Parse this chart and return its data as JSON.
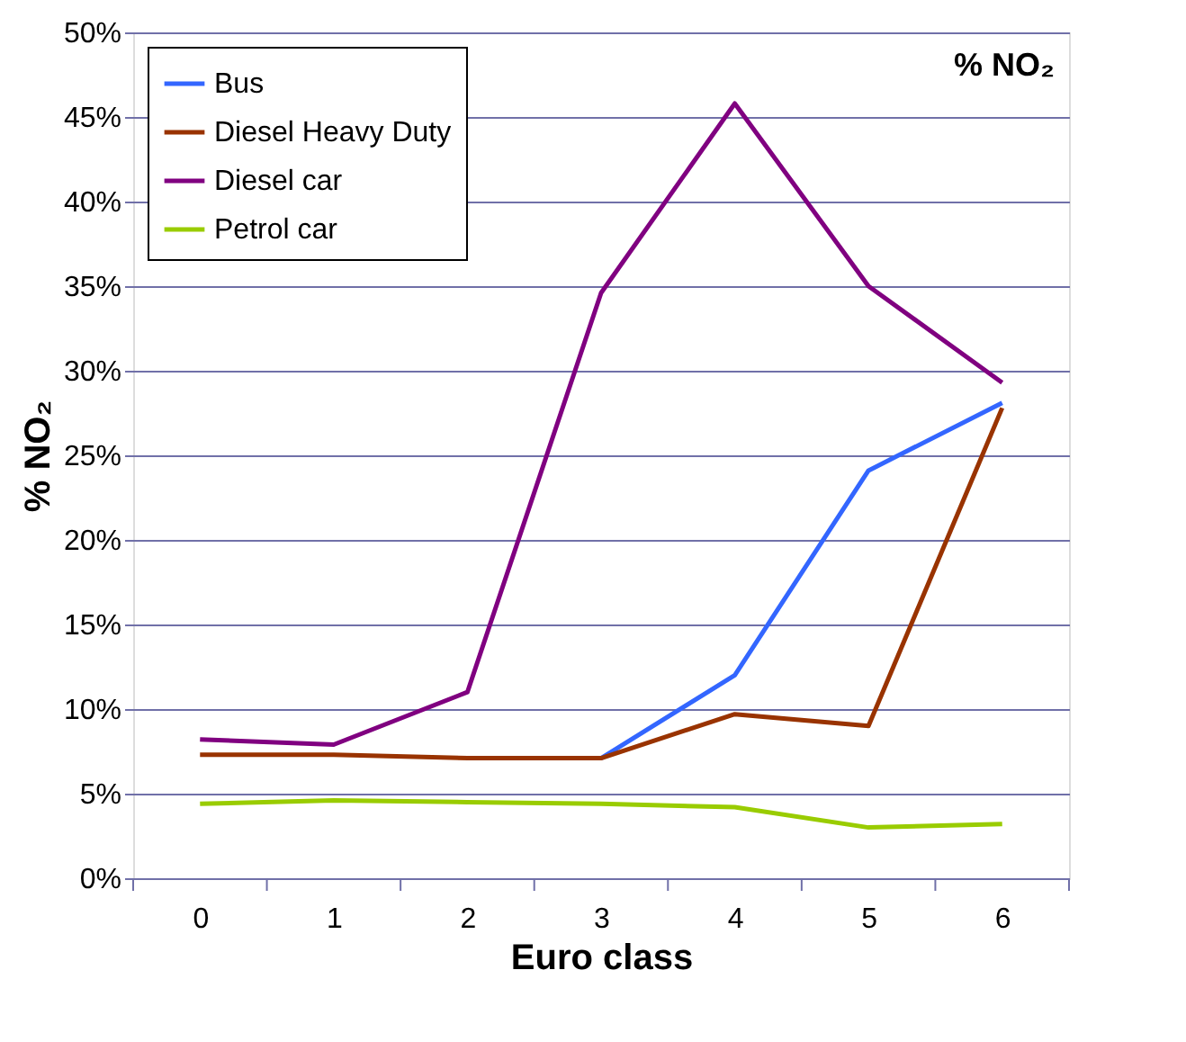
{
  "chart_data": {
    "type": "line",
    "title": "% NO₂",
    "xlabel": "Euro class",
    "ylabel": "% NO₂",
    "categories": [
      "0",
      "1",
      "2",
      "3",
      "4",
      "5",
      "6"
    ],
    "series": [
      {
        "name": "Bus",
        "color": "#3366ff",
        "values": [
          null,
          null,
          null,
          7.1,
          12.0,
          24.1,
          28.1
        ]
      },
      {
        "name": "Diesel Heavy Duty",
        "color": "#993300",
        "values": [
          7.3,
          7.3,
          7.1,
          7.1,
          9.7,
          9.0,
          27.8
        ]
      },
      {
        "name": "Diesel car",
        "color": "#800080",
        "values": [
          8.2,
          7.9,
          11.0,
          34.6,
          45.8,
          35.0,
          29.3
        ]
      },
      {
        "name": "Petrol car",
        "color": "#99cc00",
        "values": [
          4.4,
          4.6,
          4.5,
          4.4,
          4.2,
          3.0,
          3.2
        ]
      }
    ],
    "ylim": [
      0,
      50
    ],
    "yticks": [
      {
        "value": 0,
        "label": "0%"
      },
      {
        "value": 5,
        "label": "5%"
      },
      {
        "value": 10,
        "label": "10%"
      },
      {
        "value": 15,
        "label": "15%"
      },
      {
        "value": 20,
        "label": "20%"
      },
      {
        "value": 25,
        "label": "25%"
      },
      {
        "value": 30,
        "label": "30%"
      },
      {
        "value": 35,
        "label": "35%"
      },
      {
        "value": 40,
        "label": "40%"
      },
      {
        "value": 45,
        "label": "45%"
      },
      {
        "value": 50,
        "label": "50%"
      }
    ],
    "grid": "y",
    "legend": "top left",
    "marker": "none",
    "line_style": "solid"
  }
}
